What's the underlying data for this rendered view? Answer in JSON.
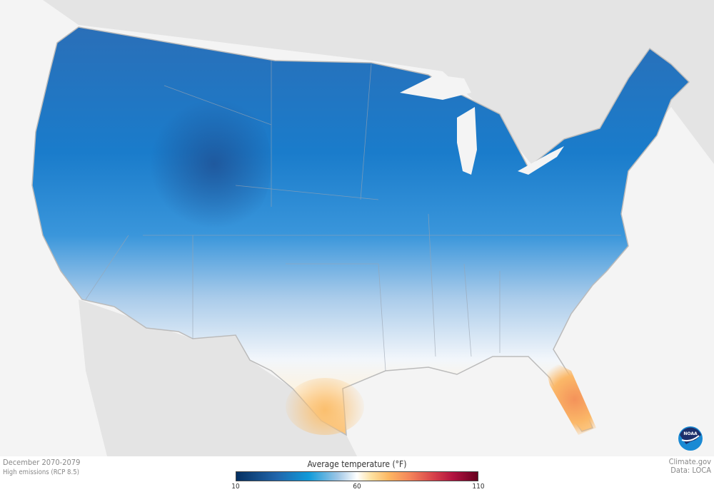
{
  "map": {
    "title_period": "December 2070-2079",
    "scenario": "High emissions (RCP 8.5)",
    "credit": "Climate.gov",
    "data_source": "Data: LOCA",
    "logo": "NOAA",
    "legend": {
      "title": "Average temperature (°F)",
      "min": "10",
      "mid": "60",
      "max": "110",
      "colors": [
        "#053061",
        "#2166ac",
        "#0f9ad9",
        "#ffffff",
        "#fdb863",
        "#d6404a",
        "#67001f"
      ]
    },
    "colors": {
      "land_outside": "#e4e4e4",
      "water": "#f4f4f4"
    }
  }
}
